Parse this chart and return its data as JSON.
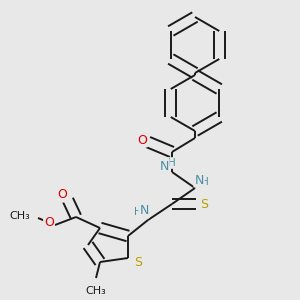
{
  "bg_color": "#e8e8e8",
  "bond_color": "#1a1a1a",
  "bond_width": 1.4,
  "dbo": 0.018,
  "atom_colors": {
    "O": "#dd0000",
    "N": "#4a90a4",
    "S": "#b8a000",
    "H": "#4a90a4"
  },
  "fs": 8.5
}
